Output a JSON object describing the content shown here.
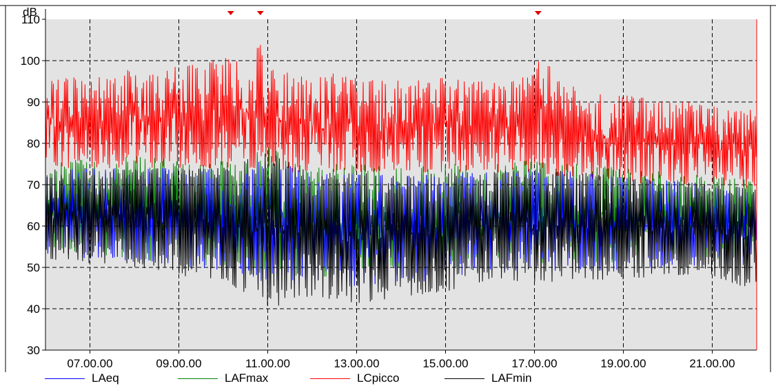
{
  "chart_data": {
    "type": "line",
    "ylabel": "dB",
    "xlabel": "",
    "title": "",
    "ylim": [
      30,
      110
    ],
    "xlim": [
      "06.00.00",
      "22.00.00"
    ],
    "yticks": [
      "30",
      "40",
      "50",
      "60",
      "70",
      "80",
      "90",
      "100",
      "110"
    ],
    "xticks": [
      "07.00.00",
      "09.00.00",
      "11.00.00",
      "13.00.00",
      "15.00.00",
      "17.00.00",
      "19.00.00",
      "21.00.00"
    ],
    "grid": true,
    "legend_position": "bottom",
    "plot_background": "#e3e3e3",
    "markers_x": [
      "10.10.00",
      "10.50.00",
      "17.05.00"
    ],
    "series": [
      {
        "name": "LCpicco",
        "color": "#ff0000",
        "x": [
          "06.00.00",
          "06.30.00",
          "07.00.00",
          "07.30.00",
          "08.00.00",
          "08.30.00",
          "09.00.00",
          "09.30.00",
          "10.00.00",
          "10.30.00",
          "10.50.00",
          "11.00.00",
          "11.30.00",
          "12.00.00",
          "12.30.00",
          "13.00.00",
          "13.30.00",
          "14.00.00",
          "14.30.00",
          "15.00.00",
          "15.30.00",
          "16.00.00",
          "16.30.00",
          "17.00.00",
          "17.05.00",
          "17.30.00",
          "18.00.00",
          "18.30.00",
          "19.00.00",
          "19.30.00",
          "20.00.00",
          "20.30.00",
          "21.00.00",
          "21.30.00",
          "22.00.00"
        ],
        "high": [
          95,
          96,
          96,
          97,
          98,
          97,
          99,
          99,
          101,
          100,
          104,
          98,
          97,
          96,
          97,
          96,
          95,
          96,
          95,
          96,
          95,
          95,
          95,
          97,
          104,
          96,
          93,
          92,
          92,
          91,
          90,
          90,
          89,
          89,
          88
        ],
        "low": [
          75,
          74,
          74,
          74,
          74,
          74,
          74,
          74,
          74,
          74,
          74,
          74,
          73,
          73,
          73,
          73,
          73,
          73,
          73,
          73,
          73,
          73,
          73,
          73,
          73,
          72,
          72,
          71,
          71,
          70,
          70,
          70,
          69,
          69,
          68
        ]
      },
      {
        "name": "LAFmax",
        "color": "#008000",
        "x": [
          "06.00.00",
          "07.00.00",
          "08.00.00",
          "09.00.00",
          "10.00.00",
          "11.00.00",
          "12.00.00",
          "13.00.00",
          "14.00.00",
          "15.00.00",
          "16.00.00",
          "17.00.00",
          "18.00.00",
          "19.00.00",
          "20.00.00",
          "21.00.00",
          "22.00.00"
        ],
        "high": [
          76,
          76,
          77,
          76,
          76,
          79,
          75,
          75,
          74,
          75,
          75,
          76,
          75,
          74,
          73,
          72,
          71
        ],
        "low": [
          55,
          53,
          52,
          51,
          50,
          48,
          48,
          47,
          48,
          49,
          51,
          51,
          51,
          51,
          52,
          52,
          52
        ]
      },
      {
        "name": "LAeq",
        "color": "#0000ff",
        "x": [
          "06.00.00",
          "07.00.00",
          "08.00.00",
          "09.00.00",
          "10.00.00",
          "11.00.00",
          "12.00.00",
          "13.00.00",
          "14.00.00",
          "15.00.00",
          "16.00.00",
          "17.00.00",
          "18.00.00",
          "19.00.00",
          "20.00.00",
          "21.00.00",
          "22.00.00"
        ],
        "high": [
          74,
          74,
          74,
          74,
          74,
          76,
          73,
          73,
          72,
          73,
          73,
          74,
          73,
          72,
          71,
          70,
          69
        ],
        "low": [
          53,
          52,
          51,
          50,
          49,
          46,
          46,
          45,
          46,
          47,
          49,
          49,
          49,
          49,
          50,
          50,
          50
        ]
      },
      {
        "name": "LAFmin",
        "color": "#000000",
        "x": [
          "06.00.00",
          "07.00.00",
          "08.00.00",
          "09.00.00",
          "10.00.00",
          "11.00.00",
          "12.00.00",
          "13.00.00",
          "14.00.00",
          "15.00.00",
          "16.00.00",
          "17.00.00",
          "18.00.00",
          "19.00.00",
          "20.00.00",
          "21.00.00",
          "22.00.00"
        ],
        "high": [
          74,
          74,
          74,
          74,
          74,
          78,
          73,
          73,
          72,
          73,
          73,
          74,
          73,
          72,
          71,
          70,
          69
        ],
        "low": [
          52,
          51,
          50,
          48,
          47,
          40,
          43,
          41,
          43,
          44,
          47,
          46,
          47,
          47,
          48,
          48,
          44
        ]
      }
    ]
  },
  "legend": {
    "items": [
      {
        "label": "LAeq",
        "color": "#0000ff"
      },
      {
        "label": "LAFmax",
        "color": "#008000"
      },
      {
        "label": "LCpicco",
        "color": "#ff0000"
      },
      {
        "label": "LAFmin",
        "color": "#000000"
      }
    ]
  }
}
